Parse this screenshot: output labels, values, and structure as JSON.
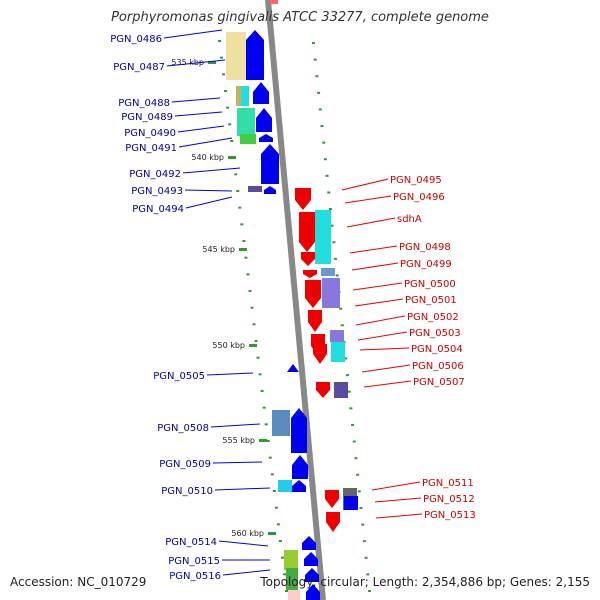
{
  "title": "Porphyromonas gingivalis ATCC 33277, complete genome",
  "accession": "Accession: NC_010729",
  "topology": "Topology: circular; Length: 2,354,886 bp; Genes: 2,155",
  "colors": {
    "forward": "#0000ee",
    "reverse": "#ee0000",
    "forward_label": "#0000aa",
    "reverse_label": "#cc0000",
    "backbone": "#888888",
    "tick": "#339933",
    "tick_label": "#222222"
  },
  "scale_labels": [
    "535 kbp",
    "540 kbp",
    "545 kbp",
    "550 kbp",
    "555 kbp",
    "560 kbp"
  ],
  "forward_genes": [
    "PGN_0486",
    "PGN_0487",
    "PGN_0488",
    "PGN_0489",
    "PGN_0490",
    "PGN_0491",
    "PGN_0492",
    "PGN_0493",
    "PGN_0494",
    "PGN_0505",
    "PGN_0508",
    "PGN_0509",
    "PGN_0510",
    "PGN_0514",
    "PGN_0515",
    "PGN_0516"
  ],
  "reverse_genes": [
    "PGN_0495",
    "PGN_0496",
    "sdhA",
    "PGN_0498",
    "PGN_0499",
    "PGN_0500",
    "PGN_0501",
    "PGN_0502",
    "PGN_0503",
    "PGN_0504",
    "PGN_0506",
    "PGN_0507",
    "PGN_0511",
    "PGN_0512",
    "PGN_0513"
  ]
}
